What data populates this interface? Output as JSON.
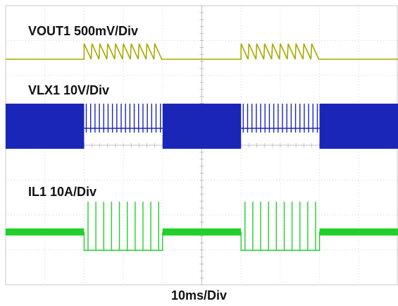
{
  "chart_data": {
    "type": "line",
    "title": "",
    "grid": true,
    "timebase_label": "10ms/Div",
    "x": {
      "unit": "ms",
      "range": [
        0,
        100
      ],
      "divisions": 10
    },
    "burst_period_ms": 40,
    "burst_duration_ms": 20,
    "first_burst_start_ms": 0,
    "series": [
      {
        "name": "VOUT1",
        "label": "VOUT1 500mV/Div",
        "color": "#a8a800",
        "scale_per_div": "500mV",
        "waveform": "sawtooth_ripple_during_idle",
        "ripple_cycles_per_idle": 10
      },
      {
        "name": "VLX1",
        "label": "VLX1 10V/Div",
        "color": "#1a26b8",
        "scale_per_div": "10V",
        "waveform": "dense_switching_bursts",
        "pulses_per_idle": 18
      },
      {
        "name": "IL1",
        "label": "IL1 10A/Div",
        "color": "#22d02a",
        "scale_per_div": "10A",
        "waveform": "current_pulses_during_idle",
        "pulses_per_idle": 10
      }
    ]
  }
}
